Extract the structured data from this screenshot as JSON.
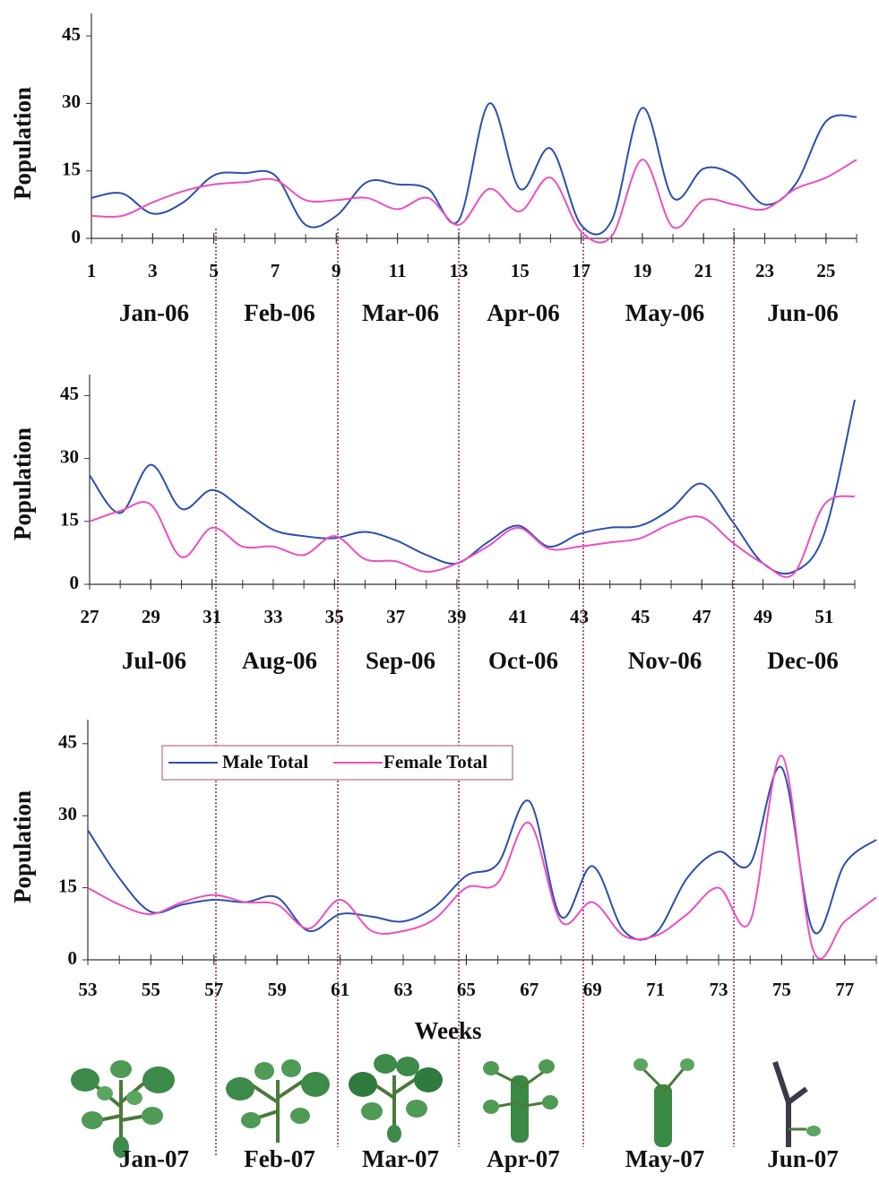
{
  "chart_data": [
    {
      "type": "line",
      "y_label": "Population",
      "x": [
        1,
        2,
        3,
        4,
        5,
        6,
        7,
        8,
        9,
        10,
        11,
        12,
        13,
        14,
        15,
        16,
        17,
        18,
        19,
        20,
        21,
        22,
        23,
        24,
        25,
        26
      ],
      "xlim": [
        1,
        26
      ],
      "xticks": [
        1,
        3,
        5,
        7,
        9,
        11,
        13,
        15,
        17,
        19,
        21,
        23,
        25
      ],
      "ylim": [
        0,
        50
      ],
      "yticks": [
        0,
        15,
        30,
        45
      ],
      "months": [
        "Jan-06",
        "Feb-06",
        "Mar-06",
        "Apr-06",
        "May-06",
        "Jun-06"
      ],
      "series": [
        {
          "name": "Male Total",
          "color": "#2b4fb0",
          "values": [
            9,
            10,
            5.5,
            8,
            14,
            14.5,
            14,
            3,
            5,
            12.5,
            12,
            11,
            4,
            30,
            11,
            20,
            3,
            4,
            29,
            9,
            15.5,
            14,
            7.5,
            12,
            26,
            27
          ]
        },
        {
          "name": "Female Total",
          "color": "#ec4fc0",
          "values": [
            5,
            5,
            8,
            10.5,
            12,
            12.5,
            13,
            8.5,
            8.5,
            9,
            6.5,
            9,
            3,
            11,
            6,
            13.5,
            1.5,
            0.5,
            17.5,
            2.5,
            8.5,
            7.5,
            6.5,
            11,
            13.5,
            17.5
          ]
        }
      ]
    },
    {
      "type": "line",
      "y_label": "Population",
      "x": [
        27,
        28,
        29,
        30,
        31,
        32,
        33,
        34,
        35,
        36,
        37,
        38,
        39,
        40,
        41,
        42,
        43,
        44,
        45,
        46,
        47,
        48,
        49,
        50,
        51,
        52
      ],
      "xlim": [
        27,
        52
      ],
      "xticks": [
        27,
        29,
        31,
        33,
        35,
        37,
        39,
        41,
        43,
        45,
        47,
        49,
        51
      ],
      "ylim": [
        0,
        50
      ],
      "yticks": [
        0,
        15,
        30,
        45
      ],
      "months": [
        "Jul-06",
        "Aug-06",
        "Sep-06",
        "Oct-06",
        "Nov-06",
        "Dec-06"
      ],
      "series": [
        {
          "name": "Male Total",
          "color": "#2b4fb0",
          "values": [
            26,
            17,
            28.5,
            18,
            22.5,
            18,
            13,
            11.5,
            11,
            12.5,
            10.5,
            7,
            5,
            10,
            14,
            9,
            12,
            13.5,
            14,
            18,
            24,
            15,
            5,
            3,
            12,
            44
          ]
        },
        {
          "name": "Female Total",
          "color": "#ec4fc0",
          "values": [
            15,
            17.5,
            19,
            6.5,
            13.5,
            9,
            9,
            7,
            11.5,
            6,
            5.5,
            3,
            5,
            9,
            13.5,
            8.5,
            9,
            10,
            11,
            14.5,
            16,
            10,
            5,
            2.5,
            19,
            21
          ]
        }
      ]
    },
    {
      "type": "line",
      "y_label": "Population",
      "x_label": "Weeks",
      "legend": true,
      "x": [
        53,
        54,
        55,
        56,
        57,
        58,
        59,
        60,
        61,
        62,
        63,
        64,
        65,
        66,
        67,
        68,
        69,
        70,
        71,
        72,
        73,
        74,
        75,
        76,
        77,
        78
      ],
      "xlim": [
        53,
        78
      ],
      "xticks": [
        53,
        55,
        57,
        59,
        61,
        63,
        65,
        67,
        69,
        71,
        73,
        75,
        77
      ],
      "ylim": [
        0,
        50
      ],
      "yticks": [
        0,
        15,
        30,
        45
      ],
      "months": [
        "Jan-07",
        "Feb-07",
        "Mar-07",
        "Apr-07",
        "May-07",
        "Jun-07"
      ],
      "series": [
        {
          "name": "Male Total",
          "color": "#2b4fb0",
          "values": [
            27,
            17,
            10,
            11.5,
            12.5,
            12,
            13,
            6,
            9.5,
            9,
            8,
            11,
            17.5,
            20,
            33,
            9,
            19.5,
            6,
            5.5,
            17,
            22.5,
            20,
            40,
            6,
            20,
            25
          ]
        },
        {
          "name": "Female Total",
          "color": "#ec4fc0",
          "values": [
            15,
            11.5,
            9.5,
            12,
            13.5,
            12,
            11.5,
            6.5,
            12.5,
            6,
            6,
            8.5,
            15,
            16,
            28.5,
            8,
            12,
            5,
            5,
            9.5,
            15,
            8,
            42.5,
            2,
            8,
            13
          ]
        }
      ]
    }
  ]
}
